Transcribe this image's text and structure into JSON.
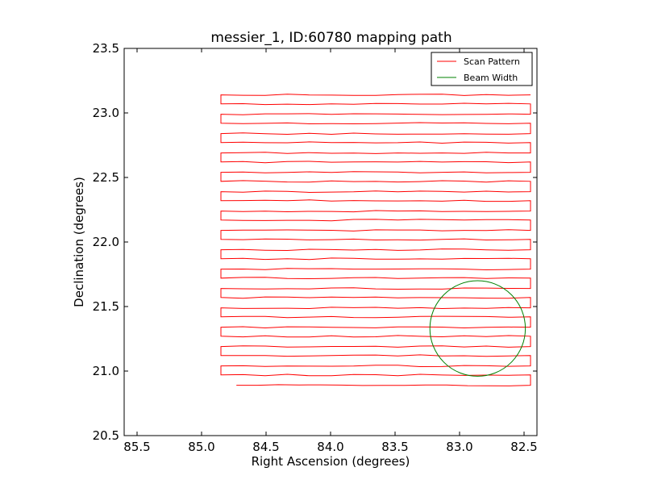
{
  "chart_data": {
    "type": "line",
    "title": "messier_1, ID:60780 mapping path",
    "xlabel": "Right Ascension (degrees)",
    "ylabel": "Declination (degrees)",
    "xlim": [
      85.6,
      82.4
    ],
    "ylim": [
      20.5,
      23.5
    ],
    "x_inverted": true,
    "xticks": [
      85.5,
      85.0,
      84.5,
      84.0,
      83.5,
      83.0,
      82.5
    ],
    "xtick_labels": [
      "85.5",
      "85.0",
      "84.5",
      "84.0",
      "83.5",
      "83.0",
      "82.5"
    ],
    "yticks": [
      20.5,
      21.0,
      21.5,
      22.0,
      22.5,
      23.0,
      23.5
    ],
    "ytick_labels": [
      "20.5",
      "21.0",
      "21.5",
      "22.0",
      "22.5",
      "23.0",
      "23.5"
    ],
    "grid": false,
    "legend_position": "top-right",
    "series": [
      {
        "name": "Scan Pattern",
        "color": "#ff0000",
        "kind": "raster",
        "x_start": 84.73,
        "x_left": 84.85,
        "x_right": 82.45,
        "rows": [
          20.89,
          20.97,
          21.04,
          21.12,
          21.19,
          21.27,
          21.34,
          21.42,
          21.49,
          21.57,
          21.64,
          21.72,
          21.79,
          21.87,
          21.94,
          22.02,
          22.09,
          22.17,
          22.24,
          22.32,
          22.39,
          22.47,
          22.54,
          22.62,
          22.69,
          22.77,
          22.84,
          22.92,
          22.99,
          23.07,
          23.14
        ]
      },
      {
        "name": "Beam Width",
        "color": "#008000",
        "kind": "circle",
        "center": [
          82.86,
          21.33
        ],
        "radius": 0.37
      }
    ]
  }
}
